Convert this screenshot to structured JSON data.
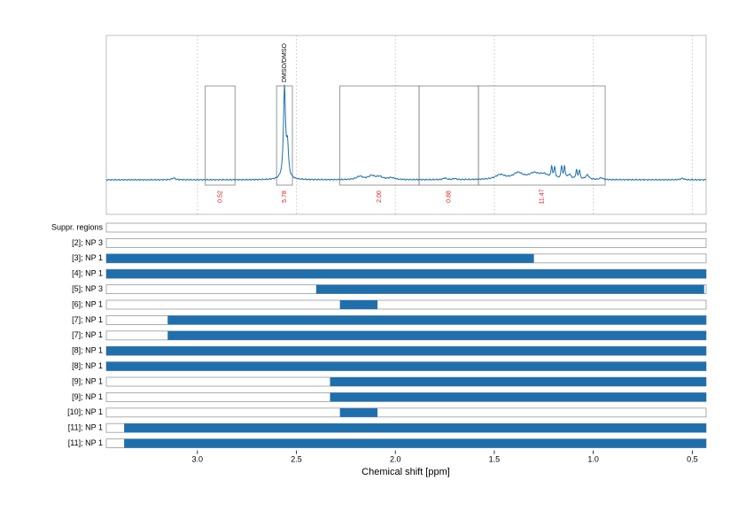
{
  "chart_data": {
    "type": "line",
    "xlabel": "Chemical shift [ppm]",
    "ylabel": "",
    "xlim": [
      3.46,
      0.43
    ],
    "x_reversed": true,
    "x_ticks": [
      3.0,
      2.5,
      2.0,
      1.5,
      1.0,
      0.5
    ],
    "x_tick_labels": [
      "3.0",
      "2.5",
      "2.0",
      "1.5",
      "1.0",
      "0.5"
    ],
    "grid": "vertical dotted",
    "spectrum_color": "#1f6fad",
    "bar_color": "#1f6fad",
    "integral_label_color": "#e31a1c",
    "spectrum_peaks": [
      {
        "shift": 2.56,
        "height": 1.0,
        "width": 0.006
      },
      {
        "shift": 2.545,
        "height": 0.35,
        "width": 0.006
      },
      {
        "shift": 3.12,
        "height": 0.02,
        "width": 0.01
      },
      {
        "shift": 2.18,
        "height": 0.035,
        "width": 0.02
      },
      {
        "shift": 2.12,
        "height": 0.04,
        "width": 0.02
      },
      {
        "shift": 2.08,
        "height": 0.03,
        "width": 0.02
      },
      {
        "shift": 2.02,
        "height": 0.02,
        "width": 0.02
      },
      {
        "shift": 1.75,
        "height": 0.018,
        "width": 0.01
      },
      {
        "shift": 1.7,
        "height": 0.012,
        "width": 0.01
      },
      {
        "shift": 1.47,
        "height": 0.05,
        "width": 0.03
      },
      {
        "shift": 1.38,
        "height": 0.07,
        "width": 0.03
      },
      {
        "shift": 1.3,
        "height": 0.06,
        "width": 0.03
      },
      {
        "shift": 1.25,
        "height": 0.05,
        "width": 0.03
      },
      {
        "shift": 1.21,
        "height": 0.12,
        "width": 0.004
      },
      {
        "shift": 1.195,
        "height": 0.12,
        "width": 0.004
      },
      {
        "shift": 1.16,
        "height": 0.14,
        "width": 0.004
      },
      {
        "shift": 1.145,
        "height": 0.13,
        "width": 0.004
      },
      {
        "shift": 1.12,
        "height": 0.05,
        "width": 0.01
      },
      {
        "shift": 1.085,
        "height": 0.1,
        "width": 0.004
      },
      {
        "shift": 1.07,
        "height": 0.1,
        "width": 0.004
      },
      {
        "shift": 1.03,
        "height": 0.05,
        "width": 0.01
      },
      {
        "shift": 0.96,
        "height": 0.02,
        "width": 0.01
      },
      {
        "shift": 0.55,
        "height": 0.015,
        "width": 0.01
      }
    ],
    "integral_regions": [
      {
        "from": 2.96,
        "to": 2.81,
        "label": "0.52"
      },
      {
        "from": 2.6,
        "to": 2.52,
        "label": "5.78"
      },
      {
        "from": 2.28,
        "to": 1.88,
        "label": "2.00"
      },
      {
        "from": 1.88,
        "to": 1.58,
        "label": "0.88"
      },
      {
        "from": 1.58,
        "to": 0.94,
        "label": "11.47"
      }
    ],
    "annotations": [
      {
        "shift": 2.56,
        "text": "DMSO/DMSO"
      }
    ],
    "rows": [
      {
        "label": "Suppr. regions",
        "bars": []
      },
      {
        "label": "[2]; NP 3",
        "bars": []
      },
      {
        "label": "[3]; NP 1",
        "bars": [
          [
            3.46,
            1.3
          ]
        ]
      },
      {
        "label": "[4]; NP 1",
        "bars": [
          [
            3.46,
            0.43
          ]
        ]
      },
      {
        "label": "[5]; NP 3",
        "bars": [
          [
            2.4,
            0.44
          ]
        ]
      },
      {
        "label": "[6]; NP 1",
        "bars": [
          [
            2.28,
            2.09
          ]
        ]
      },
      {
        "label": "[7]; NP 1",
        "bars": [
          [
            3.15,
            0.43
          ]
        ]
      },
      {
        "label": "[7]; NP 1",
        "bars": [
          [
            3.15,
            0.43
          ]
        ]
      },
      {
        "label": "[8]; NP 1",
        "bars": [
          [
            3.46,
            0.43
          ]
        ]
      },
      {
        "label": "[8]; NP 1",
        "bars": [
          [
            3.46,
            0.43
          ]
        ]
      },
      {
        "label": "[9]; NP 1",
        "bars": [
          [
            2.33,
            0.43
          ]
        ]
      },
      {
        "label": "[9]; NP 1",
        "bars": [
          [
            2.33,
            0.43
          ]
        ]
      },
      {
        "label": "[10]; NP 1",
        "bars": [
          [
            2.28,
            2.09
          ]
        ]
      },
      {
        "label": "[11]; NP 1",
        "bars": [
          [
            3.37,
            0.43
          ]
        ]
      },
      {
        "label": "[11]; NP 1",
        "bars": [
          [
            3.37,
            0.43
          ]
        ]
      }
    ]
  }
}
